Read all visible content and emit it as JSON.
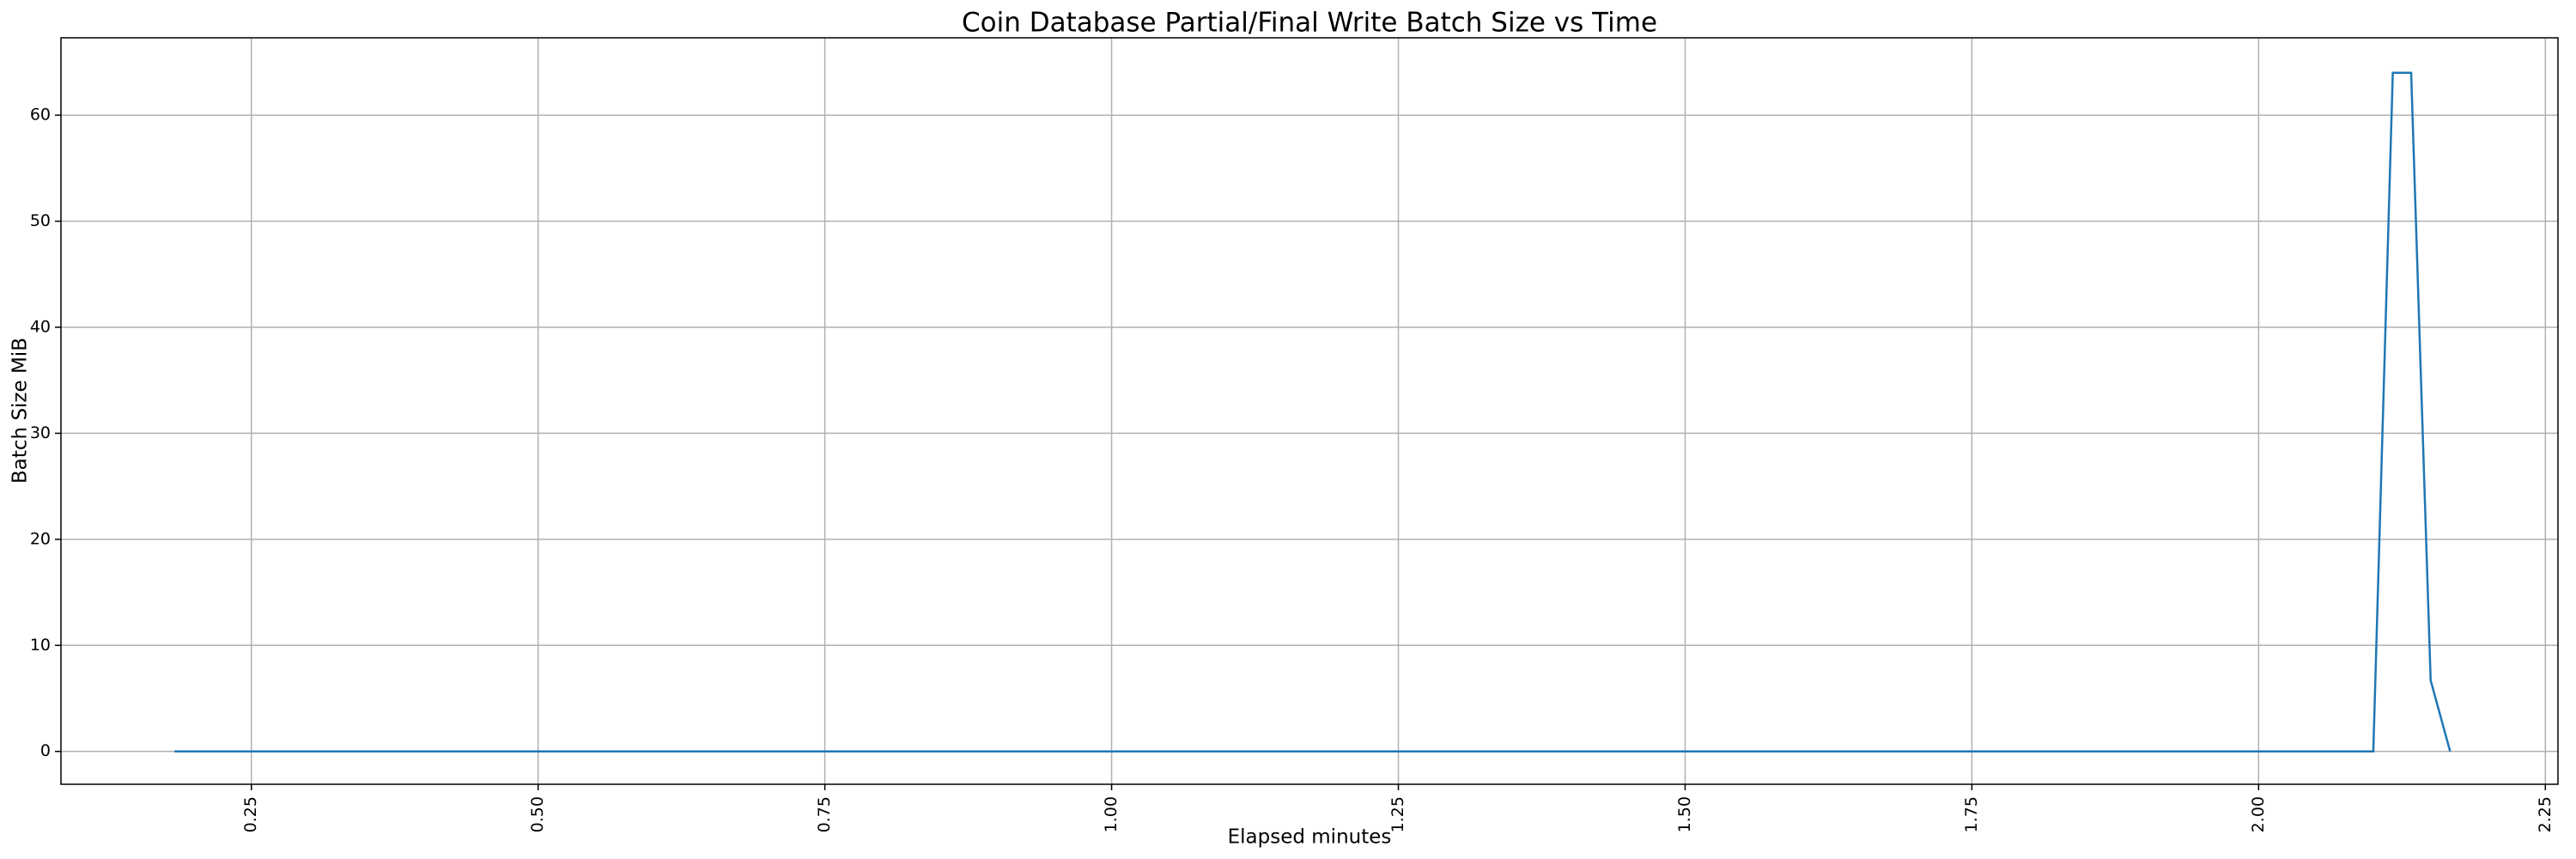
{
  "chart_data": {
    "type": "line",
    "title": "Coin Database Partial/Final Write Batch Size vs Time",
    "x_label": "Elapsed minutes",
    "y_label": "Batch Size MiB",
    "x": [
      0.183,
      2.1,
      2.117,
      2.133,
      2.15,
      2.167
    ],
    "values": [
      0,
      0,
      64,
      64,
      6.7,
      0
    ],
    "color": "#1f77b4",
    "xlim": [
      0.084,
      2.261
    ],
    "xticks": [
      0.25,
      {
        "value": 0.5,
        "label": "0.50"
      },
      0.75,
      {
        "value": 1,
        "label": "1.00"
      },
      1.25,
      {
        "value": 1.5,
        "label": "1.50"
      },
      1.75,
      {
        "value": 2,
        "label": "2.00"
      },
      2.25
    ],
    "ylim": [
      -3.1,
      67.3
    ],
    "yticks": [
      0,
      10,
      20,
      30,
      40,
      50,
      60
    ],
    "grid": true
  }
}
